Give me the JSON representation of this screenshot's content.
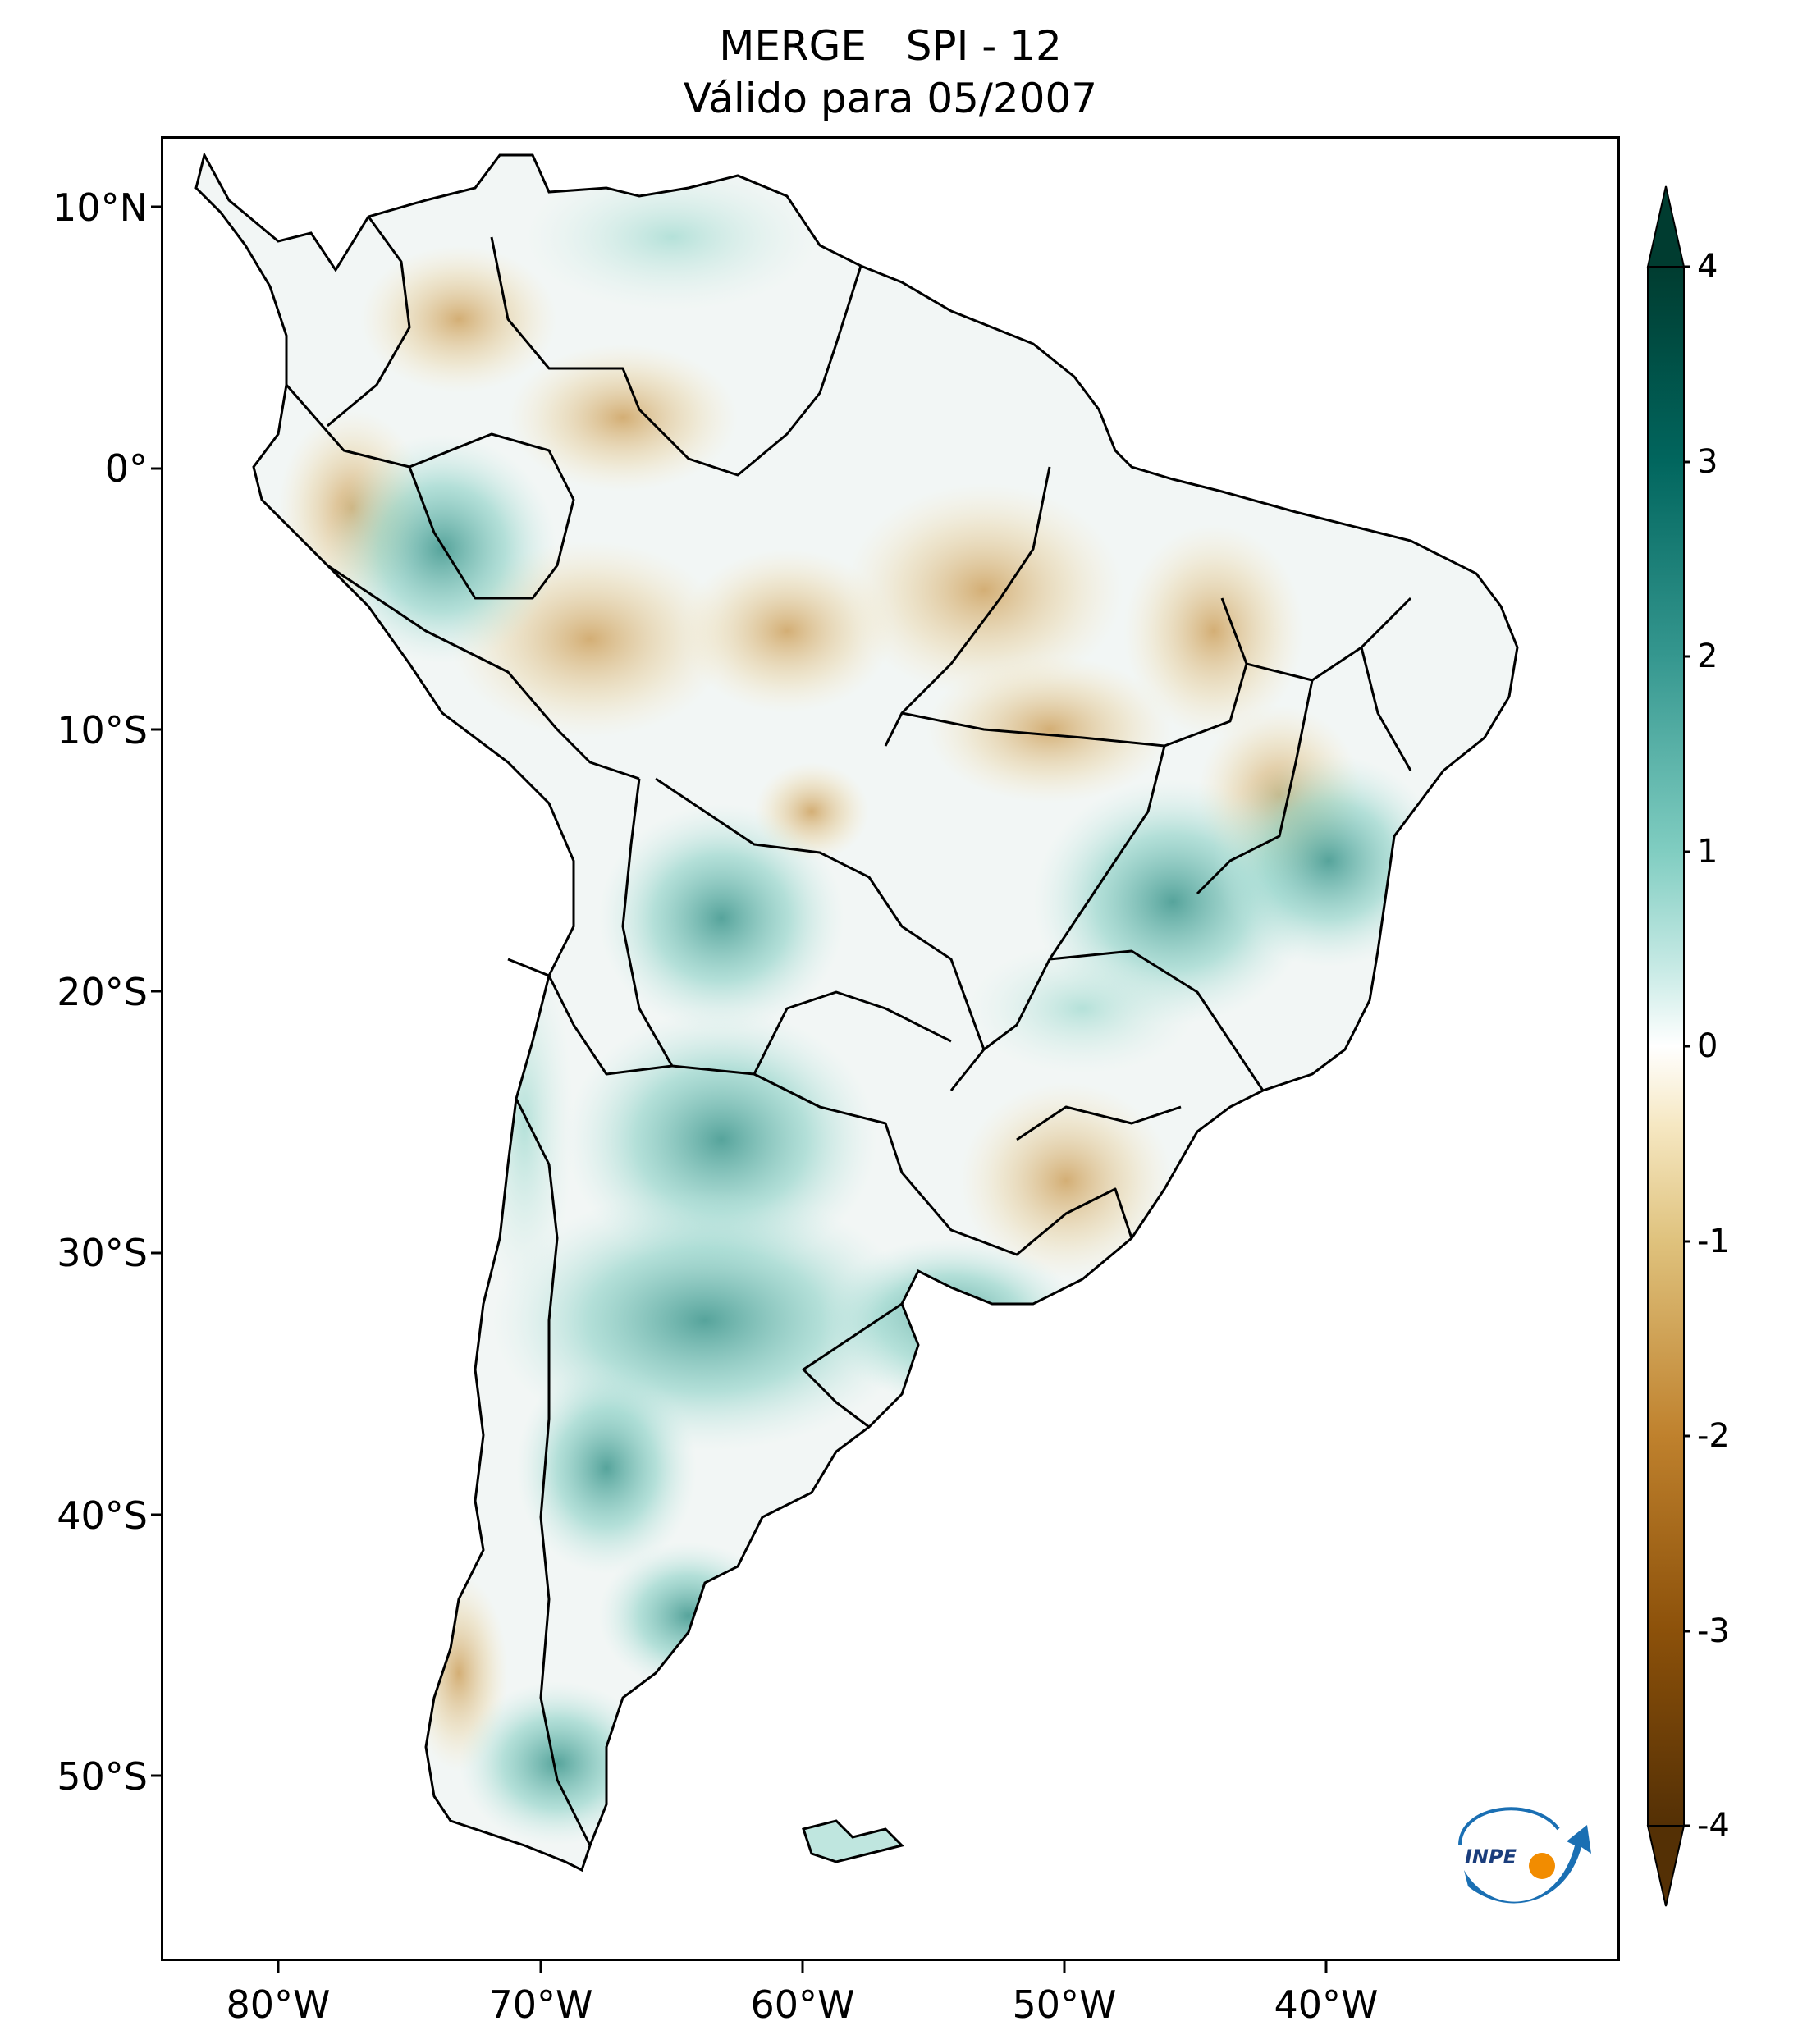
{
  "title": {
    "line1": "MERGE   SPI - 12",
    "line2": "Válido para 05/2007"
  },
  "axes": {
    "y_labels": [
      "10°N",
      "0°",
      "10°S",
      "20°S",
      "30°S",
      "40°S",
      "50°S"
    ],
    "x_labels": [
      "80°W",
      "70°W",
      "60°W",
      "50°W",
      "40°W"
    ]
  },
  "colorbar": {
    "min": -4,
    "max": 4,
    "ticks": [
      "4",
      "3",
      "2",
      "1",
      "0",
      "-1",
      "-2",
      "-3",
      "-4"
    ],
    "colors": {
      "dry_extreme": "#543005",
      "dry_strong": "#8c510a",
      "dry_moderate": "#bf812d",
      "dry_mild": "#dfc27d",
      "dry_light": "#f6e8c3",
      "neutral": "#f5f5f5",
      "wet_light": "#c7eae5",
      "wet_mild": "#80cdc1",
      "wet_moderate": "#35978f",
      "wet_strong": "#01665e",
      "wet_extreme": "#003c30"
    }
  },
  "logo": {
    "text": "INPE"
  }
}
